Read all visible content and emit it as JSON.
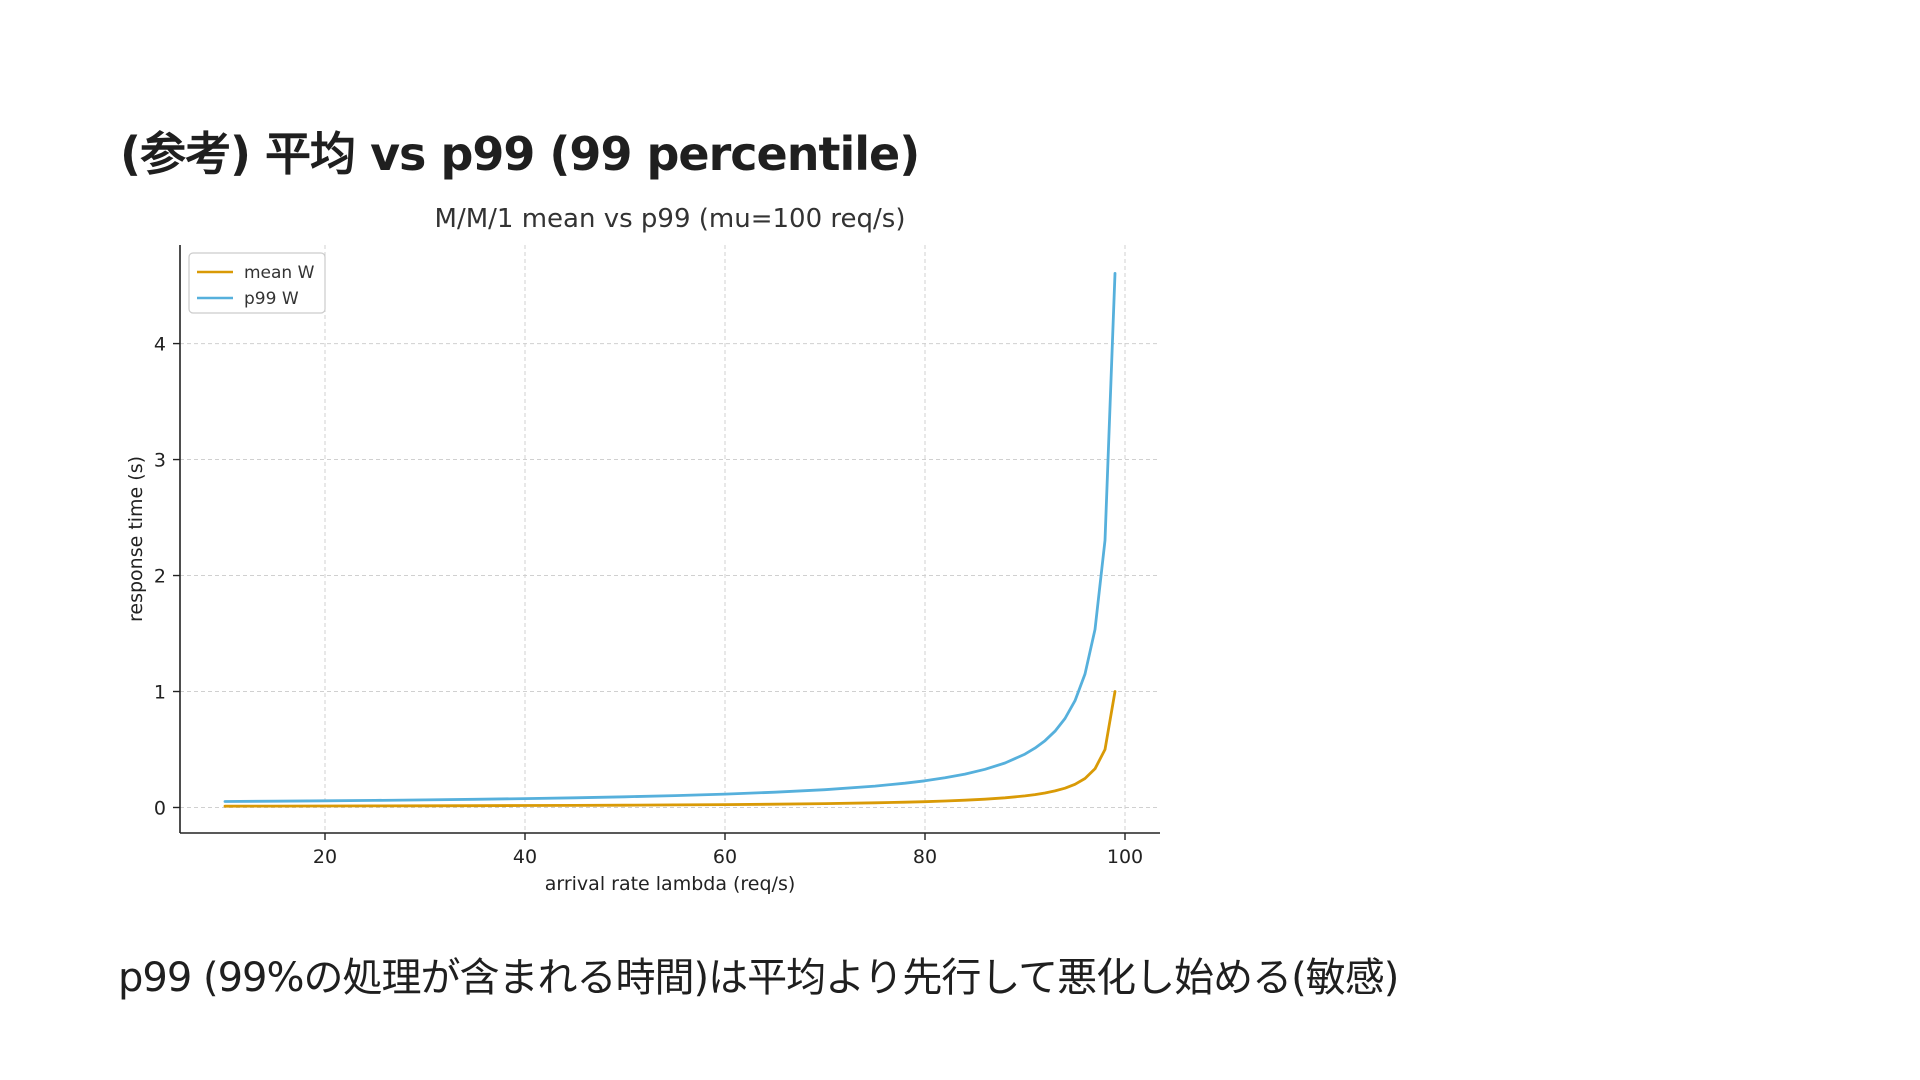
{
  "slide": {
    "title": "(参考) 平均 vs p99 (99 percentile)",
    "caption": "p99 (99%の処理が含まれる時間)は平均より先行して悪化し始める(敏感)"
  },
  "chart_data": {
    "type": "line",
    "title": "M/M/1 mean vs p99 (mu=100 req/s)",
    "xlabel": "arrival rate lambda (req/s)",
    "ylabel": "response time (s)",
    "xlim": [
      5.5,
      103.5
    ],
    "ylim": [
      -0.22,
      4.85
    ],
    "xticks": [
      20,
      40,
      60,
      80,
      100
    ],
    "yticks": [
      0,
      1,
      2,
      3,
      4
    ],
    "grid": true,
    "legend_position": "top-left",
    "x": [
      10,
      15,
      20,
      25,
      30,
      35,
      40,
      45,
      50,
      55,
      60,
      65,
      70,
      75,
      78,
      80,
      82,
      84,
      86,
      88,
      90,
      91,
      92,
      93,
      94,
      95,
      96,
      97,
      98,
      99
    ],
    "series": [
      {
        "name": "mean W",
        "color": "#d99a06",
        "values": [
          0.0111,
          0.0118,
          0.0125,
          0.0133,
          0.0143,
          0.0154,
          0.0167,
          0.0182,
          0.02,
          0.0222,
          0.025,
          0.0286,
          0.0333,
          0.04,
          0.0455,
          0.05,
          0.0556,
          0.0625,
          0.0714,
          0.0833,
          0.1,
          0.1111,
          0.125,
          0.1429,
          0.1667,
          0.2,
          0.25,
          0.3333,
          0.5,
          1.0
        ]
      },
      {
        "name": "p99 W",
        "color": "#56b0dc",
        "values": [
          0.0512,
          0.0542,
          0.0576,
          0.0614,
          0.0658,
          0.0709,
          0.0768,
          0.0837,
          0.0921,
          0.1023,
          0.1151,
          0.1316,
          0.1535,
          0.1842,
          0.2093,
          0.2303,
          0.2558,
          0.2878,
          0.3289,
          0.3838,
          0.4605,
          0.5117,
          0.5756,
          0.6579,
          0.7675,
          0.921,
          1.1513,
          1.535,
          2.3026,
          4.6052
        ]
      }
    ]
  }
}
